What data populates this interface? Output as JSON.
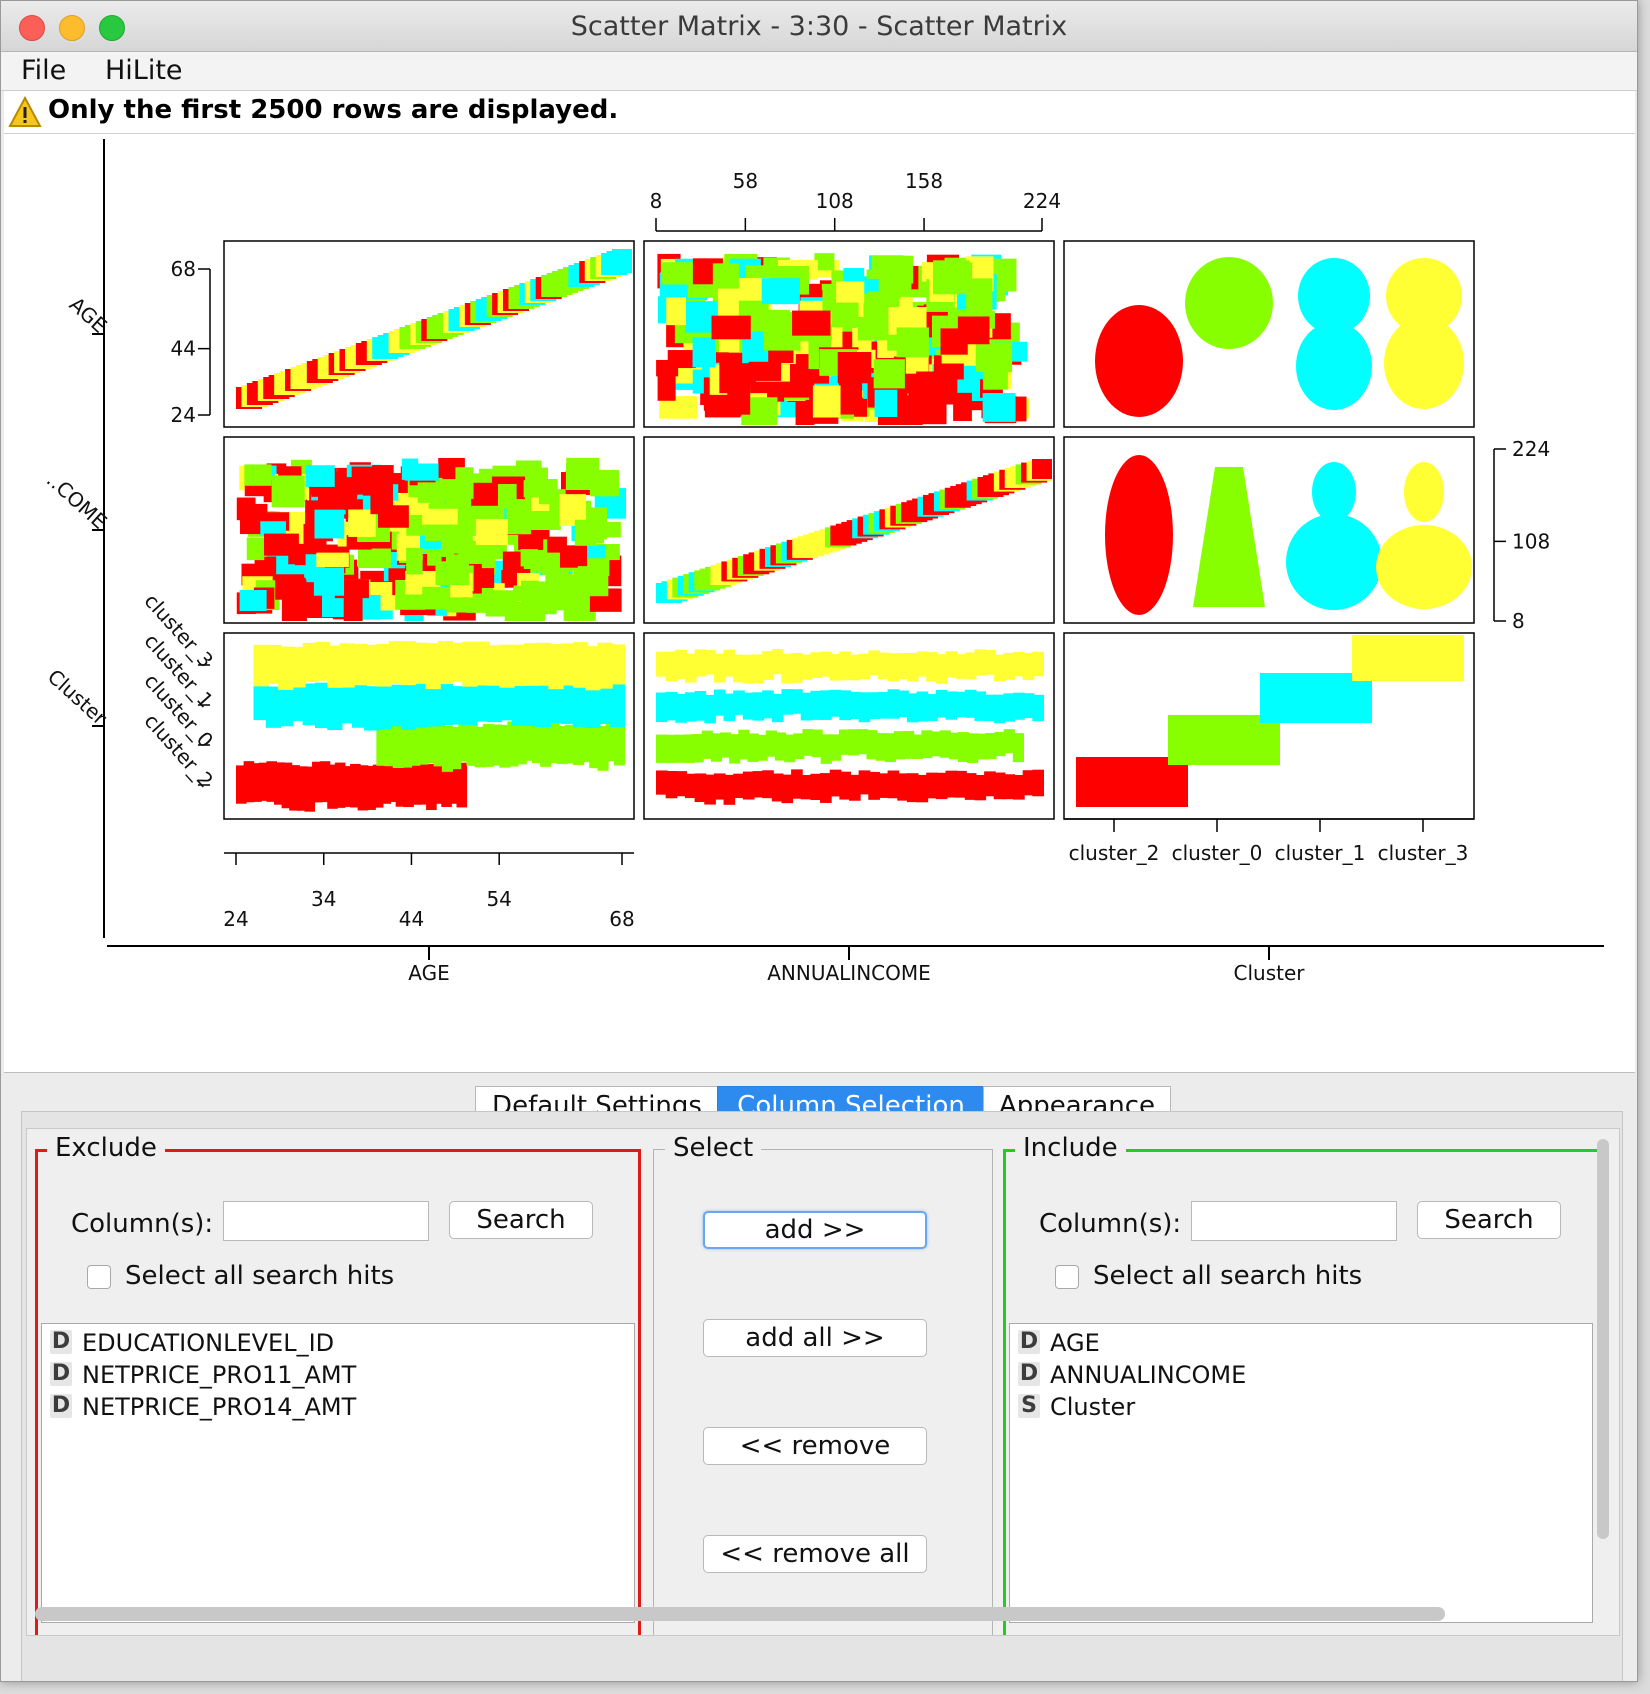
{
  "window": {
    "title": "Scatter Matrix - 3:30 - Scatter Matrix"
  },
  "menu": {
    "items": [
      "File",
      "HiLite"
    ]
  },
  "warning": {
    "text": "Only the first 2500 rows are displayed."
  },
  "colors": {
    "cluster_0": "#88ff00",
    "cluster_1": "#00ffff",
    "cluster_2": "#ff0000",
    "cluster_3": "#ffff33",
    "exclude_border": "#e01919",
    "include_border": "#22cc22",
    "active_tab": "#2d8bf0"
  },
  "chart_data": {
    "type": "scatter",
    "variables": [
      "AGE",
      "ANNUALINCOME",
      "Cluster"
    ],
    "row_labels": [
      "AGE",
      "..COME",
      "Cluster"
    ],
    "age_ticks": [
      "24",
      "34",
      "44",
      "54",
      "68"
    ],
    "age_left_ticks": [
      "68",
      "44",
      "24"
    ],
    "income_ticks": [
      "8",
      "58",
      "108",
      "158",
      "224"
    ],
    "income_right_ticks": [
      "224",
      "108",
      "8"
    ],
    "cluster_categories": [
      "cluster_2",
      "cluster_0",
      "cluster_1",
      "cluster_3"
    ],
    "cluster_left_ticks": [
      "cluster_3",
      "cluster_1",
      "cluster_0",
      "cluster_2"
    ],
    "age_range": [
      24,
      68
    ],
    "income_range": [
      8,
      224
    ],
    "series": [
      {
        "name": "cluster_2",
        "color": "#ff0000",
        "age_range": [
          24,
          50
        ],
        "income_range": [
          8,
          224
        ]
      },
      {
        "name": "cluster_0",
        "color": "#88ff00",
        "age_range": [
          40,
          68
        ],
        "income_range": [
          8,
          224
        ]
      },
      {
        "name": "cluster_1",
        "color": "#00ffff",
        "age_range": [
          26,
          68
        ],
        "income_range": [
          8,
          224
        ]
      },
      {
        "name": "cluster_3",
        "color": "#ffff33",
        "age_range": [
          26,
          68
        ],
        "income_range": [
          8,
          224
        ]
      }
    ]
  },
  "tabs": [
    {
      "label": "Default Settings",
      "active": false
    },
    {
      "label": "Column Selection",
      "active": true
    },
    {
      "label": "Appearance",
      "active": false
    }
  ],
  "exclude": {
    "title": "Exclude",
    "columns_label": "Column(s):",
    "search_value": "",
    "search_button": "Search",
    "select_all_label": "Select all search hits",
    "items": [
      {
        "type": "D",
        "name": "EDUCATIONLEVEL_ID"
      },
      {
        "type": "D",
        "name": "NETPRICE_PRO11_AMT"
      },
      {
        "type": "D",
        "name": "NETPRICE_PRO14_AMT"
      }
    ]
  },
  "select": {
    "title": "Select",
    "buttons": [
      "add >>",
      "add all >>",
      "<< remove",
      "<< remove all"
    ]
  },
  "include": {
    "title": "Include",
    "columns_label": "Column(s):",
    "search_value": "",
    "search_button": "Search",
    "select_all_label": "Select all search hits",
    "items": [
      {
        "type": "D",
        "name": "AGE"
      },
      {
        "type": "D",
        "name": "ANNUALINCOME"
      },
      {
        "type": "S",
        "name": "Cluster"
      }
    ]
  }
}
